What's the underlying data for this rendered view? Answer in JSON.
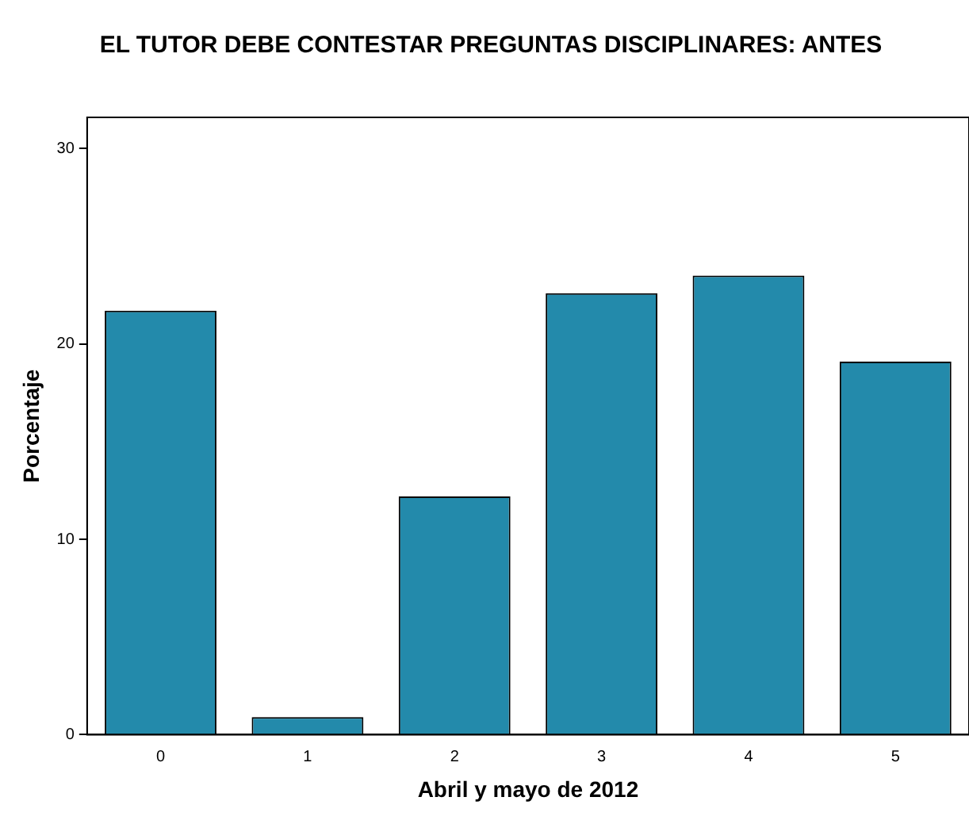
{
  "chart_data": {
    "type": "bar",
    "title": "EL TUTOR DEBE CONTESTAR PREGUNTAS DISCIPLINARES: ANTES",
    "xlabel": "Abril y mayo de 2012",
    "ylabel": "Porcentaje",
    "categories": [
      "0",
      "1",
      "2",
      "3",
      "4",
      "5"
    ],
    "values": [
      21.7,
      0.9,
      12.2,
      22.6,
      23.5,
      19.1
    ],
    "color": "#238aab",
    "ylim": [
      0,
      31.6
    ],
    "yticks": [
      0,
      10,
      20,
      30
    ],
    "grid": false,
    "legend": false
  }
}
